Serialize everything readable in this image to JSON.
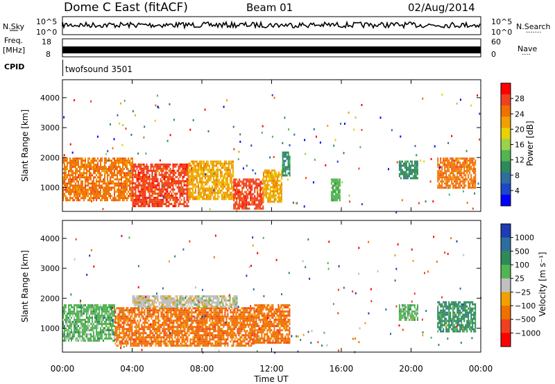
{
  "header": {
    "title": "Dome C East (fitACF)",
    "beam": "Beam 01",
    "date": "02/Aug/2014"
  },
  "strip_nsky": {
    "label": "N.Sky",
    "left_top": "10^5",
    "left_bottom": "10^0",
    "right_top": "10^5",
    "right_bottom": "10^0",
    "right_label": "N.Search",
    "right_dots": "·······"
  },
  "strip_freq": {
    "label_line1": "Freq.",
    "label_line2": "[MHz]",
    "left_top": "18",
    "left_bottom": "8",
    "right_top": "60",
    "right_bottom": "0",
    "right_label": "Nave",
    "right_dots": "····"
  },
  "strip_cpid": {
    "label": "CPID",
    "value": "twofsound 3501"
  },
  "chart_data": [
    {
      "type": "heatmap",
      "name": "power",
      "ylabel": "Slant Range [km]",
      "ylim": [
        200,
        4600
      ],
      "yticks": [
        "1000",
        "2000",
        "3000",
        "4000"
      ],
      "ytick_values": [
        1000,
        2000,
        3000,
        4000
      ],
      "xlim": [
        0,
        24
      ],
      "colorbar": {
        "label": "Power [dB]",
        "ticks": [
          "28",
          "24",
          "20",
          "16",
          "12",
          "8",
          "4"
        ],
        "colors": [
          "#ff0000",
          "#f04020",
          "#f07000",
          "#f0a000",
          "#e6d200",
          "#9ad24a",
          "#52b552",
          "#2e8a5a",
          "#2e6e9e",
          "#1e46c8",
          "#0000ff"
        ]
      },
      "bands": [
        {
          "t0": 0.0,
          "t1": 4.0,
          "r0": 600,
          "r1": 2000,
          "value": 24
        },
        {
          "t0": 4.0,
          "t1": 7.2,
          "r0": 400,
          "r1": 1800,
          "value": 26
        },
        {
          "t0": 7.2,
          "t1": 9.8,
          "r0": 600,
          "r1": 1900,
          "value": 22
        },
        {
          "t0": 9.8,
          "t1": 11.5,
          "r0": 300,
          "r1": 1300,
          "value": 28
        },
        {
          "t0": 11.5,
          "t1": 12.6,
          "r0": 500,
          "r1": 1600,
          "value": 20
        },
        {
          "t0": 12.6,
          "t1": 13.0,
          "r0": 1400,
          "r1": 2200,
          "value": 10
        },
        {
          "t0": 15.4,
          "t1": 15.9,
          "r0": 600,
          "r1": 1300,
          "value": 12
        },
        {
          "t0": 19.3,
          "t1": 20.4,
          "r0": 1300,
          "r1": 1900,
          "value": 10
        },
        {
          "t0": 21.5,
          "t1": 23.7,
          "r0": 1000,
          "r1": 2000,
          "value": 24
        }
      ]
    },
    {
      "type": "heatmap",
      "name": "velocity",
      "ylabel": "Slant Range [km]",
      "ylim": [
        200,
        4600
      ],
      "yticks": [
        "1000",
        "2000",
        "3000",
        "4000"
      ],
      "ytick_values": [
        1000,
        2000,
        3000,
        4000
      ],
      "xlim": [
        0,
        24
      ],
      "xticks": [
        "00:00",
        "04:00",
        "08:00",
        "12:00",
        "16:00",
        "20:00",
        "00:00"
      ],
      "xtick_values": [
        0,
        4,
        8,
        12,
        16,
        20,
        24
      ],
      "xlabel": "Time UT",
      "colorbar": {
        "label": "Velocity [m s⁻¹]",
        "ticks": [
          "1000",
          "500",
          "100",
          "25",
          "−25",
          "−100",
          "−500",
          "−1000"
        ],
        "colors": [
          "#1e3cb4",
          "#2e6e9e",
          "#2e8a5a",
          "#52b552",
          "#c0c0c0",
          "#f0a000",
          "#f07000",
          "#f04020",
          "#ff0000"
        ]
      },
      "bands": [
        {
          "t0": 0.0,
          "t1": 3.0,
          "r0": 600,
          "r1": 1800,
          "value": 150
        },
        {
          "t0": 3.0,
          "t1": 11.0,
          "r0": 400,
          "r1": 1700,
          "value": -200
        },
        {
          "t0": 4.0,
          "t1": 10.0,
          "r0": 1700,
          "r1": 2100,
          "value": 0
        },
        {
          "t0": 11.0,
          "t1": 13.0,
          "r0": 500,
          "r1": 1800,
          "value": -300
        },
        {
          "t0": 19.3,
          "t1": 20.4,
          "r0": 1300,
          "r1": 1800,
          "value": 80
        },
        {
          "t0": 21.5,
          "t1": 23.7,
          "r0": 900,
          "r1": 1900,
          "value": 200
        }
      ]
    }
  ]
}
